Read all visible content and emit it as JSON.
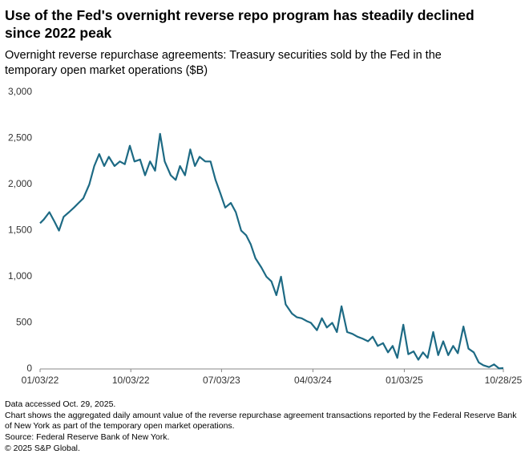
{
  "chart_data": {
    "type": "line",
    "title": "Use of the Fed's overnight reverse repo program has steadily declined since 2022 peak",
    "subtitle": "Overnight reverse repurchase agreements: Treasury securities sold by the Fed in the temporary open market operations ($B)",
    "notes": [
      "Data accessed Oct. 29, 2025.",
      "Chart shows the aggregated daily amount value of the reverse repurchase agreement transactions reported by the Federal Reserve Bank of New York as part of the temporary open market operations.",
      "Source: Federal Reserve Bank of New York.",
      "© 2025 S&P Global."
    ],
    "color": "#1d6a84",
    "grid": false,
    "xlim": [
      "2022-01-03",
      "2025-10-28"
    ],
    "xticks": [
      {
        "value": "2022-01-03",
        "label": "01/03/22"
      },
      {
        "value": "2022-10-03",
        "label": "10/03/22"
      },
      {
        "value": "2023-07-03",
        "label": "07/03/23"
      },
      {
        "value": "2024-04-03",
        "label": "04/03/24"
      },
      {
        "value": "2025-01-03",
        "label": "01/03/25"
      },
      {
        "value": "2025-10-28",
        "label": "10/28/25"
      }
    ],
    "ylim": [
      0,
      3000
    ],
    "yticks": [
      0,
      500,
      {
        "value": 1000,
        "label": "1,000"
      },
      {
        "value": 1500,
        "label": "1,500"
      },
      {
        "value": 2000,
        "label": "2,000"
      },
      {
        "value": 2500,
        "label": "2,500"
      },
      {
        "value": 3000,
        "label": "3,000"
      }
    ],
    "x": [
      "2022-01-03",
      "2022-01-14",
      "2022-01-31",
      "2022-02-15",
      "2022-03-01",
      "2022-03-15",
      "2022-03-31",
      "2022-04-15",
      "2022-04-29",
      "2022-05-13",
      "2022-05-31",
      "2022-06-15",
      "2022-06-30",
      "2022-07-15",
      "2022-07-29",
      "2022-08-15",
      "2022-08-31",
      "2022-09-15",
      "2022-09-30",
      "2022-10-14",
      "2022-10-31",
      "2022-11-15",
      "2022-11-30",
      "2022-12-15",
      "2022-12-30",
      "2023-01-13",
      "2023-01-31",
      "2023-02-15",
      "2023-02-28",
      "2023-03-15",
      "2023-03-31",
      "2023-04-14",
      "2023-04-28",
      "2023-05-15",
      "2023-05-31",
      "2023-06-15",
      "2023-06-30",
      "2023-07-14",
      "2023-07-31",
      "2023-08-15",
      "2023-08-31",
      "2023-09-15",
      "2023-09-29",
      "2023-10-13",
      "2023-10-31",
      "2023-11-15",
      "2023-11-30",
      "2023-12-15",
      "2023-12-29",
      "2024-01-12",
      "2024-01-31",
      "2024-02-15",
      "2024-02-29",
      "2024-03-15",
      "2024-03-28",
      "2024-04-15",
      "2024-04-30",
      "2024-05-15",
      "2024-05-31",
      "2024-06-14",
      "2024-06-28",
      "2024-07-15",
      "2024-07-31",
      "2024-08-15",
      "2024-08-30",
      "2024-09-16",
      "2024-09-30",
      "2024-10-15",
      "2024-10-31",
      "2024-11-15",
      "2024-11-29",
      "2024-12-13",
      "2024-12-31",
      "2025-01-15",
      "2025-01-31",
      "2025-02-14",
      "2025-02-28",
      "2025-03-14",
      "2025-03-31",
      "2025-04-15",
      "2025-04-30",
      "2025-05-15",
      "2025-05-30",
      "2025-06-13",
      "2025-06-30",
      "2025-07-15",
      "2025-07-31",
      "2025-08-15",
      "2025-08-29",
      "2025-09-15",
      "2025-09-30",
      "2025-10-15",
      "2025-10-28"
    ],
    "values": [
      1580,
      1620,
      1700,
      1600,
      1500,
      1650,
      1700,
      1750,
      1800,
      1850,
      2000,
      2200,
      2330,
      2200,
      2300,
      2200,
      2250,
      2220,
      2420,
      2250,
      2270,
      2100,
      2250,
      2150,
      2550,
      2250,
      2100,
      2050,
      2200,
      2100,
      2380,
      2200,
      2300,
      2250,
      2250,
      2050,
      1900,
      1750,
      1800,
      1700,
      1500,
      1450,
      1350,
      1200,
      1100,
      1000,
      950,
      800,
      1000,
      700,
      600,
      560,
      550,
      520,
      500,
      420,
      550,
      450,
      500,
      400,
      680,
      400,
      380,
      350,
      330,
      300,
      350,
      250,
      280,
      180,
      250,
      120,
      480,
      160,
      190,
      100,
      180,
      120,
      400,
      150,
      300,
      150,
      250,
      170,
      460,
      220,
      180,
      70,
      40,
      20,
      50,
      5,
      10
    ]
  }
}
